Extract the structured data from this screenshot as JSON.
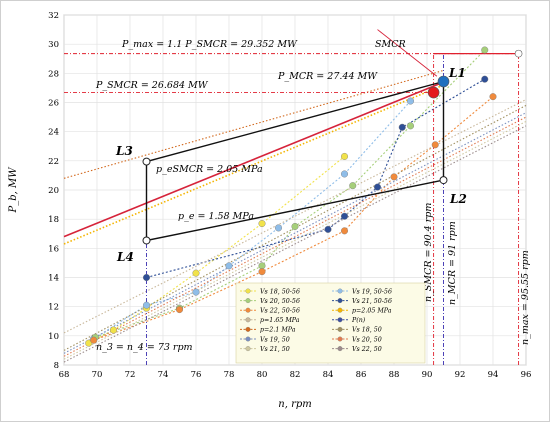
{
  "chart_data": {
    "type": "scatter",
    "xlabel": "n, rpm",
    "ylabel": "P_b, MW",
    "xlim": [
      68,
      96
    ],
    "ylim": [
      8,
      32
    ],
    "x_ticks": [
      68,
      70,
      72,
      74,
      76,
      78,
      80,
      82,
      84,
      86,
      88,
      90,
      92,
      94,
      96
    ],
    "y_ticks": [
      8,
      10,
      12,
      14,
      16,
      18,
      20,
      22,
      24,
      26,
      28,
      30,
      32
    ],
    "grid": true,
    "legend_position": "bottom-right",
    "annotations": {
      "pmax": "P_max = 1.1 P_SMCR = 29.352 MW",
      "p26": "P_SMCR = 26.684 MW",
      "pmcr": "P_MCR = 27.44 MW",
      "smcr": "SMCR",
      "pe_smcr": "p_eSMCR = 2.05 MPa",
      "pe": "p_e = 1.58 MPa",
      "n_smcr": "n_SMCR = 90.4 rpm",
      "n_mcr": "n_MCR = 91 rpm",
      "n_max": "n_max = 95.55 rpm",
      "n34": "n_3 = n_4 = 73 rpm",
      "L1": "L1",
      "L2": "L2",
      "L3": "L3",
      "L4": "L4"
    },
    "layout_diagram": [
      {
        "name": "L1",
        "x": 91.0,
        "y": 27.44
      },
      {
        "name": "L2",
        "x": 91.0,
        "y": 20.68
      },
      {
        "name": "L3",
        "x": 73.0,
        "y": 21.95
      },
      {
        "name": "L4",
        "x": 73.0,
        "y": 16.54
      }
    ],
    "reference_points": [
      {
        "label": "SMCR",
        "x": 90.4,
        "y": 26.684,
        "color": "#e41a1c"
      },
      {
        "label": "MCR",
        "x": 91.0,
        "y": 27.44,
        "color": "#1f6fbf"
      },
      {
        "label": "max",
        "x": 95.55,
        "y": 29.352,
        "color": "#ffffff"
      }
    ],
    "series": [
      {
        "name": "Vs 18, 50-56",
        "color": "#f1e24a",
        "style": "marker",
        "points": [
          [
            69.5,
            9.5
          ],
          [
            71,
            10.4
          ],
          [
            73,
            11.9
          ],
          [
            76,
            14.3
          ],
          [
            80,
            17.7
          ],
          [
            85,
            22.3
          ]
        ]
      },
      {
        "name": "Vs 19, 50-56",
        "color": "#8fbde8",
        "style": "marker",
        "points": [
          [
            69.8,
            9.8
          ],
          [
            73,
            12.1
          ],
          [
            76,
            13.0
          ],
          [
            78,
            14.8
          ],
          [
            81,
            17.4
          ],
          [
            85,
            21.1
          ],
          [
            89,
            26.1
          ]
        ]
      },
      {
        "name": "Vs 20, 50-56",
        "color": "#a6cf7a",
        "style": "marker",
        "points": [
          [
            69.9,
            9.9
          ],
          [
            75,
            11.9
          ],
          [
            80,
            14.8
          ],
          [
            82,
            17.5
          ],
          [
            85.5,
            20.3
          ],
          [
            89,
            24.4
          ],
          [
            93.5,
            29.6
          ]
        ]
      },
      {
        "name": "Vs 21, 50-56",
        "color": "#2f4f96",
        "style": "marker",
        "points": [
          [
            73,
            14.0
          ],
          [
            84,
            17.3
          ],
          [
            85,
            18.2
          ],
          [
            87,
            20.2
          ],
          [
            88.5,
            24.3
          ],
          [
            93.5,
            27.6
          ]
        ]
      },
      {
        "name": "Vs 22, 50-56",
        "color": "#f08a3c",
        "style": "marker",
        "points": [
          [
            69.8,
            9.7
          ],
          [
            75,
            11.8
          ],
          [
            80,
            14.4
          ],
          [
            85,
            17.2
          ],
          [
            88,
            20.9
          ],
          [
            90.5,
            23.1
          ],
          [
            94,
            26.4
          ]
        ]
      },
      {
        "name": "P(n)",
        "color": "#3c4fa0",
        "style": "line",
        "points": [
          [
            68,
            16.8
          ],
          [
            91,
            27.4
          ]
        ]
      },
      {
        "name": "p=1.65 MPa",
        "color": "#c8b79a",
        "style": "line",
        "points": [
          [
            68,
            10.2
          ],
          [
            96,
            26.2
          ]
        ]
      },
      {
        "name": "Vs 18, 50",
        "color": "#a09060",
        "style": "line",
        "points": [
          [
            68,
            9.0
          ],
          [
            96,
            25.8
          ]
        ]
      },
      {
        "name": "p=2.1 MPa",
        "color": "#d2691e",
        "style": "line",
        "points": [
          [
            68,
            20.8
          ],
          [
            91,
            28.2
          ]
        ]
      },
      {
        "name": "Vs 19, 50",
        "color": "#7a8fbf",
        "style": "line",
        "points": [
          [
            68,
            8.8
          ],
          [
            96,
            25.3
          ]
        ]
      },
      {
        "name": "Vs 20, 50",
        "color": "#e07a50",
        "style": "line",
        "points": [
          [
            68,
            8.6
          ],
          [
            96,
            25.0
          ]
        ]
      },
      {
        "name": "p=2.05 MPa",
        "color": "#f4b400",
        "style": "line",
        "points": [
          [
            68,
            16.3
          ],
          [
            91,
            27.2
          ]
        ]
      },
      {
        "name": "Vs 21, 50",
        "color": "#cfc8a0",
        "style": "line",
        "points": [
          [
            68,
            8.4
          ],
          [
            96,
            24.7
          ]
        ]
      },
      {
        "name": "Vs 22, 50",
        "color": "#9c8c8c",
        "style": "line",
        "points": [
          [
            68,
            8.2
          ],
          [
            96,
            24.4
          ]
        ]
      }
    ],
    "legend": [
      {
        "label": "Vs 18, 50-56",
        "color": "#f1e24a",
        "kind": "marker"
      },
      {
        "label": "Vs 19, 50-56",
        "color": "#8fbde8",
        "kind": "marker"
      },
      {
        "label": "Vs 20, 50-56",
        "color": "#a6cf7a",
        "kind": "marker"
      },
      {
        "label": "Vs 21, 50-56",
        "color": "#2f4f96",
        "kind": "marker"
      },
      {
        "label": "Vs 22, 50-56",
        "color": "#f08a3c",
        "kind": "marker"
      },
      {
        "label": "p=2.05 MPa",
        "color": "#f4b400",
        "kind": "marker"
      },
      {
        "label": "p=1.65 MPa",
        "color": "#c8b79a",
        "kind": "marker"
      },
      {
        "label": "P(n)",
        "color": "#3c4fa0",
        "kind": "marker"
      },
      {
        "label": "p=2.1 MPa",
        "color": "#d2691e",
        "kind": "marker"
      },
      {
        "label": "Vs 18, 50",
        "color": "#a09060",
        "kind": "marker"
      },
      {
        "label": "Vs 19, 50",
        "color": "#7a8fbf",
        "kind": "marker"
      },
      {
        "label": "Vs 20, 50",
        "color": "#e07a50",
        "kind": "marker"
      },
      {
        "label": "Vs 21, 50",
        "color": "#cfc8a0",
        "kind": "marker"
      },
      {
        "label": "Vs 22, 50",
        "color": "#9c8c8c",
        "kind": "marker"
      }
    ]
  }
}
